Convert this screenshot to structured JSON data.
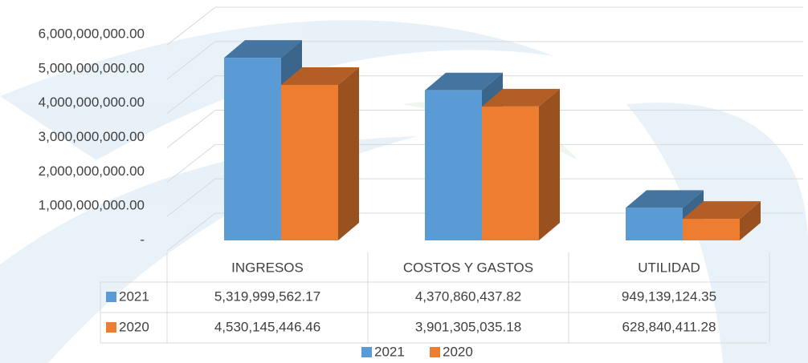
{
  "chart_data": {
    "type": "bar3d",
    "categories": [
      "INGRESOS",
      "COSTOS Y GASTOS",
      "UTILIDAD"
    ],
    "series": [
      {
        "name": "2021",
        "color": "#5b9bd5",
        "values": [
          5319999562.17,
          4370860437.82,
          949139124.35
        ],
        "value_labels": [
          "5,319,999,562.17",
          "4,370,860,437.82",
          "949,139,124.35"
        ]
      },
      {
        "name": "2020",
        "color": "#ed7d31",
        "values": [
          4530145446.46,
          3901305035.18,
          628840411.28
        ],
        "value_labels": [
          "4,530,145,446.46",
          "3,901,305,035.18",
          "628,840,411.28"
        ]
      }
    ],
    "ylim": [
      0,
      6000000000
    ],
    "yticks": [
      {
        "value": 0,
        "label": "-"
      },
      {
        "value": 1000000000,
        "label": "1,000,000,000.00"
      },
      {
        "value": 2000000000,
        "label": "2,000,000,000.00"
      },
      {
        "value": 3000000000,
        "label": "3,000,000,000.00"
      },
      {
        "value": 4000000000,
        "label": "4,000,000,000.00"
      },
      {
        "value": 5000000000,
        "label": "5,000,000,000.00"
      },
      {
        "value": 6000000000,
        "label": "6,000,000,000.00"
      }
    ],
    "grid": true,
    "legend": "bottom"
  }
}
